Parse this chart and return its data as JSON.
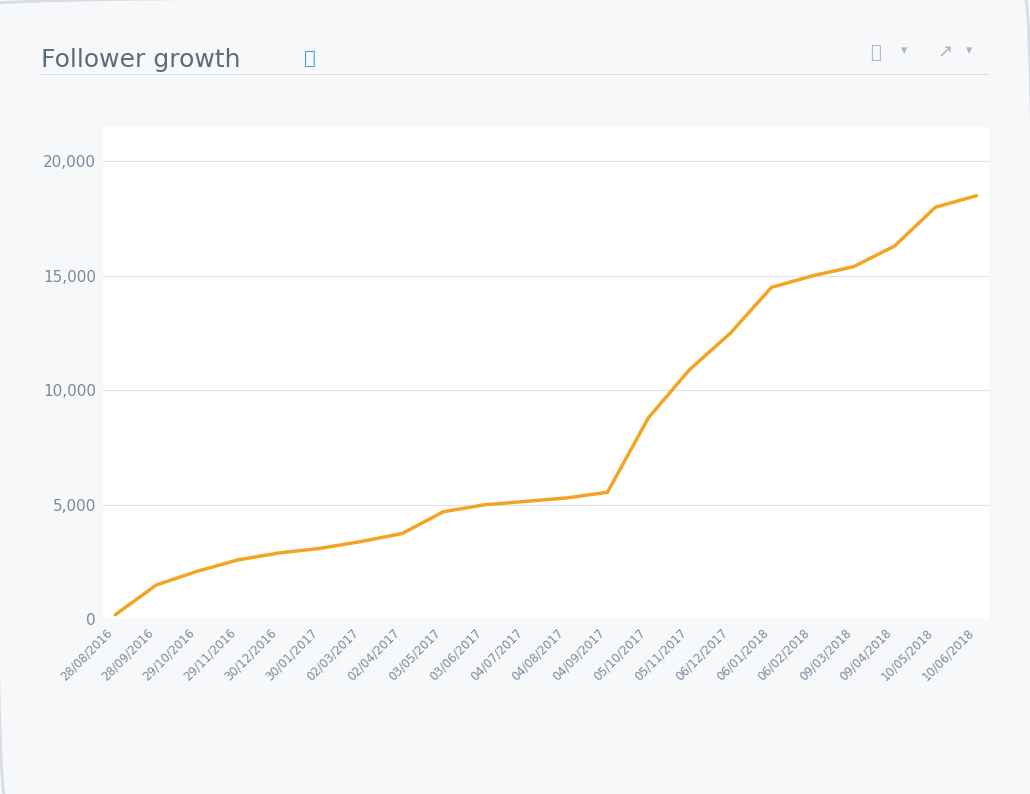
{
  "title": "Follower growth",
  "background_color": "#f7f8fa",
  "plot_bg_color": "#ffffff",
  "border_color": "#d8dce5",
  "line_color": "#f5a323",
  "line_width": 2.5,
  "grid_color": "#dde2ea",
  "text_color": "#7b8a9e",
  "title_color": "#5d6b7a",
  "info_color": "#4a9fd4",
  "icon_color": "#aab4c2",
  "ylim": [
    0,
    21500
  ],
  "yticks": [
    0,
    5000,
    10000,
    15000,
    20000
  ],
  "ytick_labels": [
    "0",
    "5,000",
    "10,000",
    "15,000",
    "20,000"
  ],
  "x_labels": [
    "28/08/2016",
    "28/09/2016",
    "29/10/2016",
    "29/11/2016",
    "30/12/2016",
    "30/01/2017",
    "02/03/2017",
    "02/04/2017",
    "03/05/2017",
    "03/06/2017",
    "04/07/2017",
    "04/08/2017",
    "04/09/2017",
    "05/10/2017",
    "05/11/2017",
    "06/12/2017",
    "06/01/2018",
    "06/02/2018",
    "09/03/2018",
    "09/04/2018",
    "10/05/2018",
    "10/06/2018"
  ],
  "y_values": [
    200,
    1500,
    2100,
    2600,
    2900,
    3100,
    3400,
    3750,
    4700,
    5000,
    5150,
    5300,
    5550,
    8800,
    10900,
    12500,
    14500,
    15000,
    15400,
    16300,
    18000,
    18500
  ]
}
